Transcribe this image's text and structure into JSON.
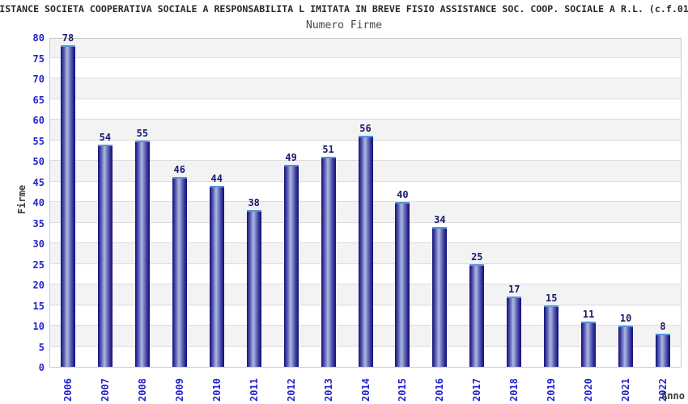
{
  "header": {
    "title": "ISTANCE SOCIETA COOPERATIVA SOCIALE A RESPONSABILITA L IMITATA IN BREVE FISIO ASSISTANCE SOC. COOP. SOCIALE A R.L. (c.f.01",
    "subtitle": "Numero Firme"
  },
  "chart_data": {
    "type": "bar",
    "title": "Numero Firme",
    "categories": [
      "2006",
      "2007",
      "2008",
      "2009",
      "2010",
      "2011",
      "2012",
      "2013",
      "2014",
      "2015",
      "2016",
      "2017",
      "2018",
      "2019",
      "2020",
      "2021",
      "2022"
    ],
    "values": [
      78,
      54,
      55,
      46,
      44,
      38,
      49,
      51,
      56,
      40,
      34,
      25,
      17,
      15,
      11,
      10,
      8
    ],
    "xlabel": "Anno",
    "ylabel": "Firme",
    "ylim": [
      0,
      80
    ],
    "ytick_step": 5,
    "grid": true,
    "band_alternate": true,
    "legend": "none"
  },
  "colors": {
    "tick_label_blue": "#2323cb",
    "data_label_navy": "#191970",
    "bar_edge": "#12127a",
    "bar_highlight": "#b2bae3",
    "bar_cap": "#5593dd",
    "band_gray": "#f3f3f3",
    "gridline": "#dcdcdc",
    "plot_border": "#cccccc",
    "text_dark": "#3a3a3a"
  }
}
